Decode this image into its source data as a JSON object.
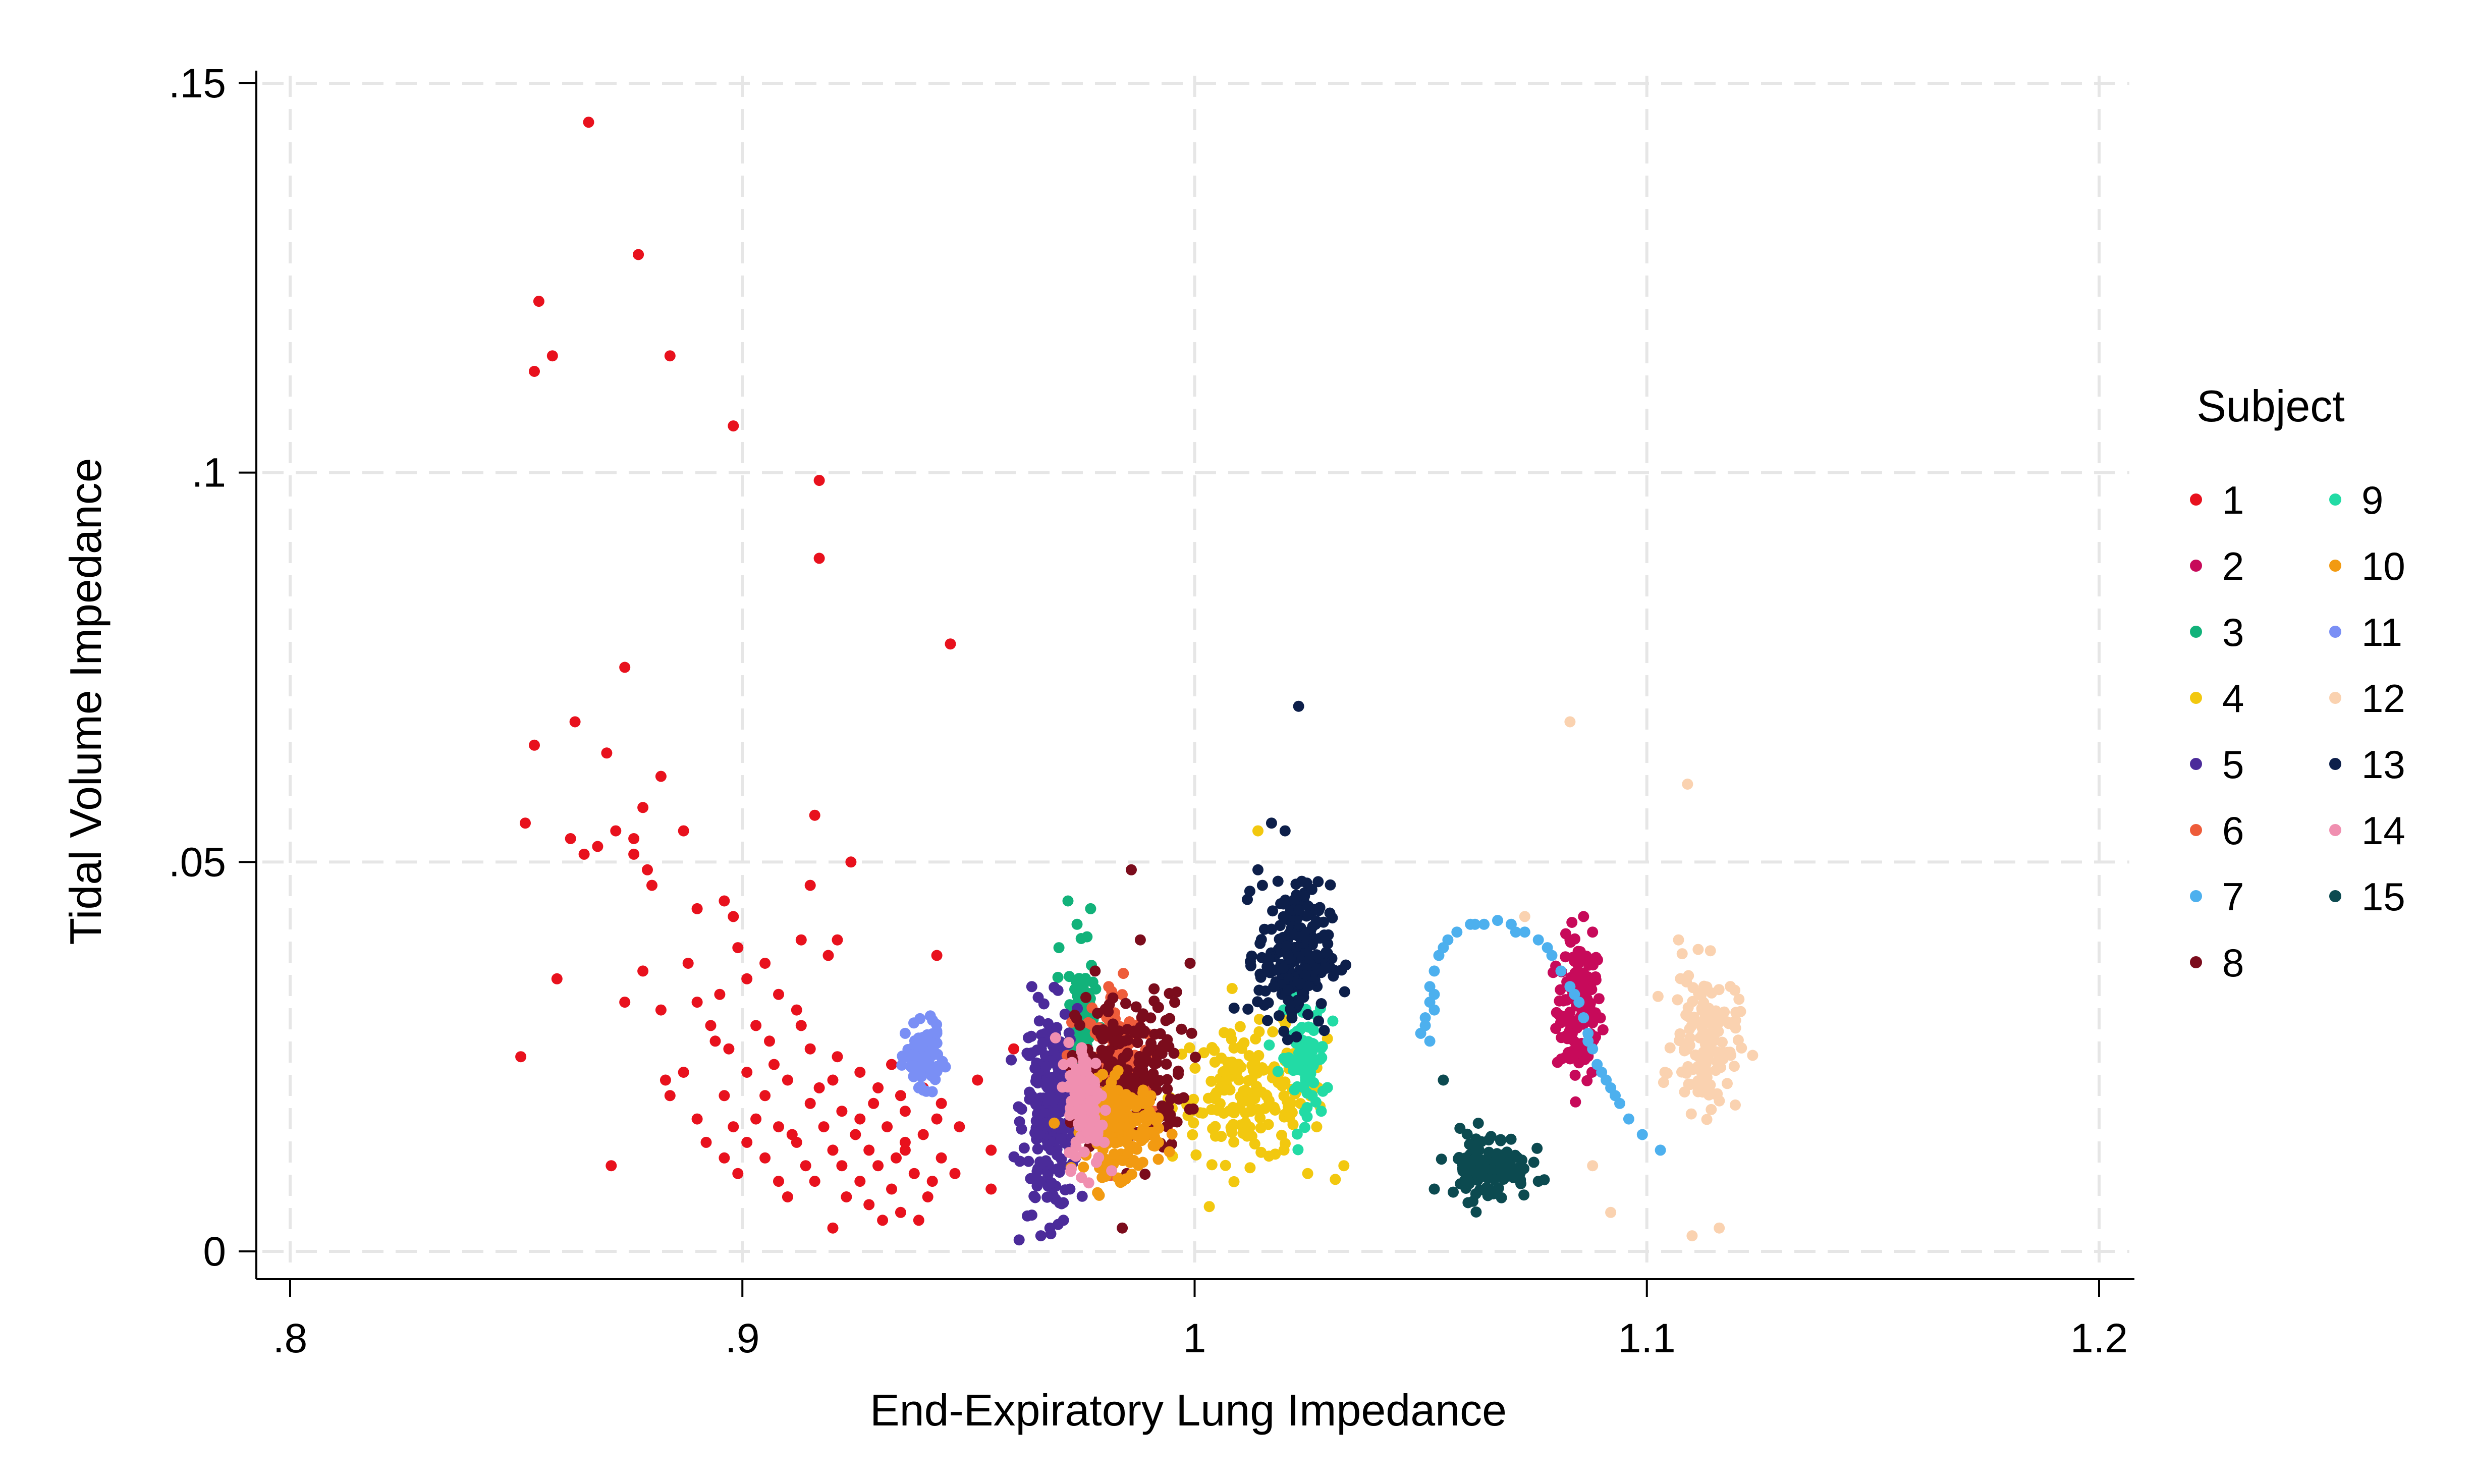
{
  "chart_data": {
    "type": "scatter",
    "title": "",
    "xlabel": "End-Expiratory Lung Impedance",
    "ylabel": "Tidal Volume Impedance",
    "xlim": [
      0.8,
      1.2
    ],
    "ylim": [
      0,
      0.15
    ],
    "xticks": [
      0.8,
      0.9,
      1.0,
      1.1,
      1.2
    ],
    "xtick_labels": [
      ".8",
      ".9",
      "1",
      "1.1",
      "1.2"
    ],
    "yticks": [
      0,
      0.05,
      0.1,
      0.15
    ],
    "ytick_labels": [
      "0",
      ".05",
      ".1",
      ".15"
    ],
    "grid": true,
    "legend": {
      "title": "Subject",
      "position": "right",
      "columns": 2
    },
    "series": [
      {
        "name": "1",
        "color": "#e8111d",
        "points": [
          [
            0.866,
            0.145
          ],
          [
            0.877,
            0.128
          ],
          [
            0.855,
            0.122
          ],
          [
            0.884,
            0.115
          ],
          [
            0.858,
            0.115
          ],
          [
            0.854,
            0.113
          ],
          [
            0.898,
            0.106
          ],
          [
            0.917,
            0.099
          ],
          [
            0.917,
            0.089
          ],
          [
            0.946,
            0.078
          ],
          [
            0.874,
            0.075
          ],
          [
            0.863,
            0.068
          ],
          [
            0.854,
            0.065
          ],
          [
            0.87,
            0.064
          ],
          [
            0.882,
            0.061
          ],
          [
            0.878,
            0.057
          ],
          [
            0.916,
            0.056
          ],
          [
            0.852,
            0.055
          ],
          [
            0.872,
            0.054
          ],
          [
            0.887,
            0.054
          ],
          [
            0.862,
            0.053
          ],
          [
            0.876,
            0.053
          ],
          [
            0.868,
            0.052
          ],
          [
            0.865,
            0.051
          ],
          [
            0.924,
            0.05
          ],
          [
            0.879,
            0.049
          ],
          [
            0.896,
            0.045
          ],
          [
            0.898,
            0.043
          ],
          [
            0.915,
            0.047
          ],
          [
            0.913,
            0.04
          ],
          [
            0.921,
            0.04
          ],
          [
            0.919,
            0.038
          ],
          [
            0.943,
            0.038
          ],
          [
            0.88,
            0.047
          ],
          [
            0.89,
            0.044
          ],
          [
            0.888,
            0.037
          ],
          [
            0.905,
            0.037
          ],
          [
            0.901,
            0.035
          ],
          [
            0.859,
            0.035
          ],
          [
            0.878,
            0.036
          ],
          [
            0.895,
            0.033
          ],
          [
            0.908,
            0.033
          ],
          [
            0.874,
            0.032
          ],
          [
            0.882,
            0.031
          ],
          [
            0.893,
            0.029
          ],
          [
            0.903,
            0.029
          ],
          [
            0.913,
            0.029
          ],
          [
            0.906,
            0.027
          ],
          [
            0.897,
            0.026
          ],
          [
            0.915,
            0.026
          ],
          [
            0.921,
            0.025
          ],
          [
            0.851,
            0.025
          ],
          [
            0.887,
            0.023
          ],
          [
            0.901,
            0.023
          ],
          [
            0.91,
            0.022
          ],
          [
            0.92,
            0.022
          ],
          [
            0.926,
            0.023
          ],
          [
            0.933,
            0.024
          ],
          [
            0.94,
            0.021
          ],
          [
            0.884,
            0.02
          ],
          [
            0.896,
            0.02
          ],
          [
            0.905,
            0.02
          ],
          [
            0.915,
            0.019
          ],
          [
            0.922,
            0.018
          ],
          [
            0.929,
            0.019
          ],
          [
            0.936,
            0.018
          ],
          [
            0.943,
            0.017
          ],
          [
            0.89,
            0.017
          ],
          [
            0.898,
            0.016
          ],
          [
            0.908,
            0.016
          ],
          [
            0.918,
            0.016
          ],
          [
            0.925,
            0.015
          ],
          [
            0.932,
            0.016
          ],
          [
            0.94,
            0.015
          ],
          [
            0.948,
            0.016
          ],
          [
            0.892,
            0.014
          ],
          [
            0.901,
            0.014
          ],
          [
            0.912,
            0.014
          ],
          [
            0.92,
            0.013
          ],
          [
            0.928,
            0.013
          ],
          [
            0.936,
            0.013
          ],
          [
            0.944,
            0.012
          ],
          [
            0.955,
            0.013
          ],
          [
            0.896,
            0.012
          ],
          [
            0.905,
            0.012
          ],
          [
            0.914,
            0.011
          ],
          [
            0.922,
            0.011
          ],
          [
            0.93,
            0.011
          ],
          [
            0.938,
            0.01
          ],
          [
            0.947,
            0.01
          ],
          [
            0.899,
            0.01
          ],
          [
            0.908,
            0.009
          ],
          [
            0.916,
            0.009
          ],
          [
            0.926,
            0.009
          ],
          [
            0.933,
            0.008
          ],
          [
            0.941,
            0.007
          ],
          [
            0.955,
            0.008
          ],
          [
            0.928,
            0.006
          ],
          [
            0.935,
            0.005
          ],
          [
            0.939,
            0.004
          ],
          [
            0.931,
            0.004
          ],
          [
            0.92,
            0.003
          ],
          [
            0.96,
            0.026
          ],
          [
            0.952,
            0.022
          ],
          [
            0.935,
            0.02
          ],
          [
            0.926,
            0.017
          ],
          [
            0.911,
            0.015
          ],
          [
            0.871,
            0.011
          ],
          [
            0.883,
            0.022
          ],
          [
            0.894,
            0.027
          ],
          [
            0.912,
            0.031
          ],
          [
            0.899,
            0.039
          ],
          [
            0.936,
            0.014
          ],
          [
            0.944,
            0.019
          ],
          [
            0.903,
            0.017
          ],
          [
            0.917,
            0.021
          ],
          [
            0.93,
            0.021
          ],
          [
            0.907,
            0.024
          ],
          [
            0.89,
            0.032
          ],
          [
            0.876,
            0.051
          ],
          [
            0.934,
            0.012
          ],
          [
            0.942,
            0.009
          ],
          [
            0.923,
            0.007
          ],
          [
            0.91,
            0.007
          ]
        ]
      },
      {
        "name": "2",
        "color": "#c70a5a",
        "center": [
          1.085,
          0.031
        ],
        "spread": [
          0.0025,
          0.0045
        ],
        "count": 130,
        "points": [
          [
            1.086,
            0.043
          ],
          [
            1.083,
            0.04
          ],
          [
            1.088,
            0.041
          ]
        ]
      },
      {
        "name": "3",
        "color": "#12b27a",
        "center": [
          0.975,
          0.03
        ],
        "spread": [
          0.0015,
          0.0045
        ],
        "count": 100,
        "points": [
          [
            0.972,
            0.045
          ],
          [
            0.977,
            0.044
          ],
          [
            0.974,
            0.042
          ],
          [
            0.97,
            0.039
          ]
        ]
      },
      {
        "name": "4",
        "color": "#f2c80f",
        "center": [
          1.012,
          0.02
        ],
        "spread": [
          0.0085,
          0.0042
        ],
        "count": 170,
        "points": [
          [
            1.014,
            0.054
          ],
          [
            1.027,
            0.016
          ],
          [
            1.033,
            0.011
          ],
          [
            1.025,
            0.01
          ]
        ]
      },
      {
        "name": "5",
        "color": "#4b2b9a",
        "center": [
          0.968,
          0.018
        ],
        "spread": [
          0.003,
          0.0065
        ],
        "count": 230,
        "points": [
          [
            0.968,
            0.003
          ],
          [
            0.966,
            0.002
          ],
          [
            0.971,
            0.004
          ],
          [
            0.964,
            0.034
          ]
        ]
      },
      {
        "name": "6",
        "color": "#ee5c3a",
        "center": [
          0.982,
          0.024
        ],
        "spread": [
          0.0035,
          0.005
        ],
        "count": 130,
        "points": [
          [
            0.981,
            0.034
          ],
          [
            0.991,
            0.018
          ],
          [
            0.994,
            0.016
          ]
        ]
      },
      {
        "name": "7",
        "color": "#4db0ee",
        "points": [
          [
            1.05,
            0.028
          ],
          [
            1.051,
            0.03
          ],
          [
            1.052,
            0.032
          ],
          [
            1.052,
            0.034
          ],
          [
            1.053,
            0.036
          ],
          [
            1.054,
            0.038
          ],
          [
            1.056,
            0.04
          ],
          [
            1.058,
            0.041
          ],
          [
            1.061,
            0.042
          ],
          [
            1.064,
            0.042
          ],
          [
            1.067,
            0.0425
          ],
          [
            1.07,
            0.042
          ],
          [
            1.073,
            0.041
          ],
          [
            1.076,
            0.04
          ],
          [
            1.079,
            0.038
          ],
          [
            1.081,
            0.036
          ],
          [
            1.083,
            0.034
          ],
          [
            1.085,
            0.032
          ],
          [
            1.086,
            0.03
          ],
          [
            1.087,
            0.028
          ],
          [
            1.088,
            0.026
          ],
          [
            1.089,
            0.024
          ],
          [
            1.09,
            0.023
          ],
          [
            1.092,
            0.021
          ],
          [
            1.094,
            0.019
          ],
          [
            1.096,
            0.017
          ],
          [
            1.099,
            0.015
          ],
          [
            1.103,
            0.013
          ],
          [
            1.051,
            0.029
          ],
          [
            1.053,
            0.031
          ],
          [
            1.055,
            0.039
          ],
          [
            1.062,
            0.042
          ],
          [
            1.071,
            0.041
          ],
          [
            1.078,
            0.039
          ],
          [
            1.084,
            0.033
          ],
          [
            1.087,
            0.027
          ],
          [
            1.091,
            0.022
          ],
          [
            1.093,
            0.02
          ],
          [
            1.052,
            0.027
          ],
          [
            1.053,
            0.033
          ]
        ]
      },
      {
        "name": "8",
        "color": "#7b0c1c",
        "center": [
          0.986,
          0.023
        ],
        "spread": [
          0.006,
          0.005
        ],
        "count": 200,
        "points": [
          [
            0.986,
            0.049
          ],
          [
            0.988,
            0.04
          ],
          [
            0.999,
            0.037
          ],
          [
            0.985,
            0.01
          ],
          [
            0.984,
            0.003
          ],
          [
            0.978,
            0.036
          ]
        ]
      },
      {
        "name": "9",
        "color": "#22dba5",
        "center": [
          1.024,
          0.025
        ],
        "spread": [
          0.0025,
          0.0038
        ],
        "count": 80,
        "points": [
          [
            1.026,
            0.02
          ],
          [
            1.028,
            0.018
          ]
        ]
      },
      {
        "name": "10",
        "color": "#f29a11",
        "center": [
          0.984,
          0.016
        ],
        "spread": [
          0.004,
          0.003
        ],
        "count": 160,
        "points": [
          [
            0.984,
            0.009
          ],
          [
            0.98,
            0.01
          ],
          [
            0.992,
            0.014
          ]
        ]
      },
      {
        "name": "11",
        "color": "#7a8ff5",
        "center": [
          0.94,
          0.025
        ],
        "spread": [
          0.0018,
          0.0018
        ],
        "count": 120,
        "points": [
          [
            0.936,
            0.028
          ],
          [
            0.943,
            0.028
          ],
          [
            0.939,
            0.021
          ]
        ]
      },
      {
        "name": "12",
        "color": "#fad2b0",
        "center": [
          1.113,
          0.027
        ],
        "spread": [
          0.0035,
          0.0045
        ],
        "count": 130,
        "points": [
          [
            1.083,
            0.068
          ],
          [
            1.109,
            0.06
          ],
          [
            1.104,
            0.023
          ],
          [
            1.107,
            0.04
          ],
          [
            1.11,
            0.002
          ],
          [
            1.116,
            0.003
          ],
          [
            1.073,
            0.043
          ],
          [
            1.092,
            0.005
          ],
          [
            1.088,
            0.011
          ]
        ]
      },
      {
        "name": "13",
        "color": "#0d1f4a",
        "center": [
          1.022,
          0.038
        ],
        "spread": [
          0.004,
          0.0045
        ],
        "count": 230,
        "points": [
          [
            1.023,
            0.07
          ],
          [
            1.017,
            0.055
          ],
          [
            1.02,
            0.054
          ],
          [
            1.014,
            0.049
          ],
          [
            1.015,
            0.047
          ]
        ]
      },
      {
        "name": "14",
        "color": "#f08fb0",
        "center": [
          0.976,
          0.019
        ],
        "spread": [
          0.002,
          0.004
        ],
        "count": 130,
        "points": [
          [
            0.971,
            0.024
          ],
          [
            0.98,
            0.014
          ]
        ]
      },
      {
        "name": "15",
        "color": "#0c4a50",
        "center": [
          1.065,
          0.011
        ],
        "spread": [
          0.0045,
          0.0022
        ],
        "count": 120,
        "points": [
          [
            1.055,
            0.022
          ],
          [
            1.076,
            0.009
          ],
          [
            1.053,
            0.008
          ]
        ]
      }
    ]
  }
}
